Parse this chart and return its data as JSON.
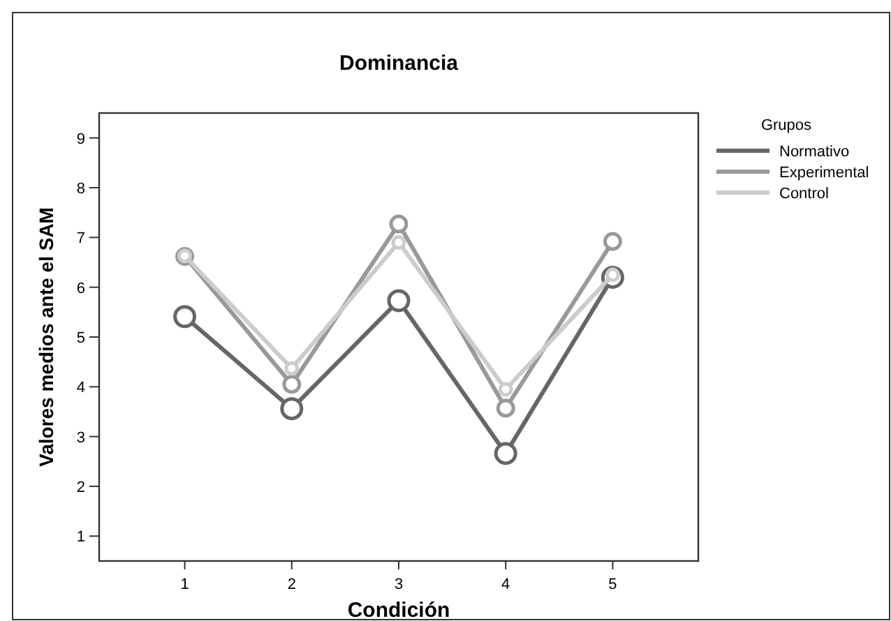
{
  "chart_data": {
    "type": "line",
    "title": "Dominancia",
    "xlabel": "Condición",
    "ylabel": "Valores medios ante el SAM",
    "legend_title": "Grupos",
    "x": [
      1,
      2,
      3,
      4,
      5
    ],
    "xlim": [
      0.2,
      5.8
    ],
    "xticks": [
      1,
      2,
      3,
      4,
      5
    ],
    "ylim": [
      0.5,
      9.5
    ],
    "yticks": [
      1,
      2,
      3,
      4,
      5,
      6,
      7,
      8,
      9
    ],
    "grid": false,
    "legend": "right",
    "marker": "circle",
    "line_style": "solid",
    "series": [
      {
        "name": "Normativo",
        "color": "#666666",
        "values": [
          5.41,
          3.56,
          5.73,
          2.66,
          6.2
        ]
      },
      {
        "name": "Experimental",
        "color": "#999999",
        "values": [
          6.62,
          4.05,
          7.27,
          3.57,
          6.92
        ]
      },
      {
        "name": "Control",
        "color": "#cccccc",
        "values": [
          6.63,
          4.37,
          6.9,
          3.95,
          6.25
        ]
      }
    ]
  }
}
